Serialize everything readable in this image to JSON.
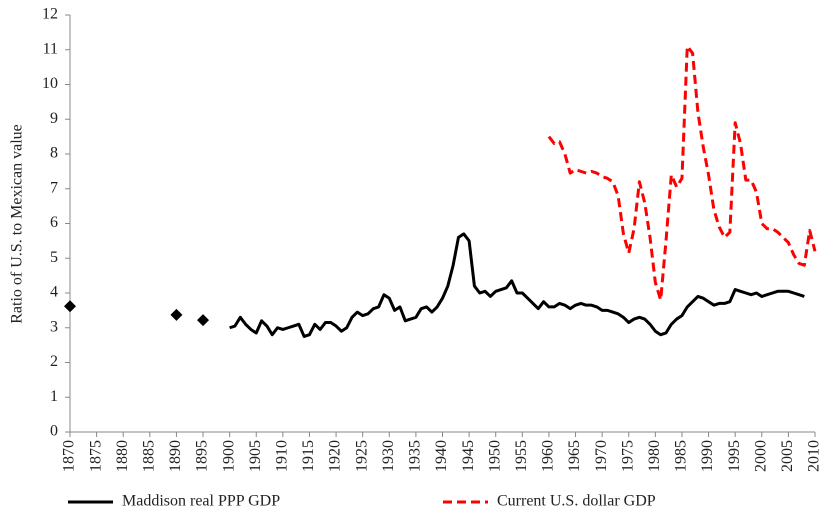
{
  "chart_data": {
    "type": "line",
    "y_label": "Ratio of U.S. to Mexican value",
    "xlim": [
      1870,
      2010
    ],
    "xticks": [
      1870,
      1875,
      1880,
      1885,
      1890,
      1895,
      1900,
      1905,
      1910,
      1915,
      1920,
      1925,
      1930,
      1935,
      1940,
      1945,
      1950,
      1955,
      1960,
      1965,
      1970,
      1975,
      1980,
      1985,
      1990,
      1995,
      2000,
      2005,
      2010
    ],
    "ylim": [
      0,
      12
    ],
    "yticks": [
      0,
      1,
      2,
      3,
      4,
      5,
      6,
      7,
      8,
      9,
      10,
      11,
      12
    ],
    "grid": false,
    "legend": "bottom",
    "series": [
      {
        "name": "Maddison real PPP GDP",
        "color": "#000000",
        "style": "solid",
        "x": [
          1900,
          1901,
          1902,
          1903,
          1904,
          1905,
          1906,
          1907,
          1908,
          1909,
          1910,
          1911,
          1912,
          1913,
          1914,
          1915,
          1916,
          1917,
          1918,
          1919,
          1920,
          1921,
          1922,
          1923,
          1924,
          1925,
          1926,
          1927,
          1928,
          1929,
          1930,
          1931,
          1932,
          1933,
          1934,
          1935,
          1936,
          1937,
          1938,
          1939,
          1940,
          1941,
          1942,
          1943,
          1944,
          1945,
          1946,
          1947,
          1948,
          1949,
          1950,
          1951,
          1952,
          1953,
          1954,
          1955,
          1956,
          1957,
          1958,
          1959,
          1960,
          1961,
          1962,
          1963,
          1964,
          1965,
          1966,
          1967,
          1968,
          1969,
          1970,
          1971,
          1972,
          1973,
          1974,
          1975,
          1976,
          1977,
          1978,
          1979,
          1980,
          1981,
          1982,
          1983,
          1984,
          1985,
          1986,
          1987,
          1988,
          1989,
          1990,
          1991,
          1992,
          1993,
          1994,
          1995,
          1996,
          1997,
          1998,
          1999,
          2000,
          2001,
          2002,
          2003,
          2004,
          2005,
          2006,
          2007,
          2008
        ],
        "values": [
          3.0,
          3.05,
          3.3,
          3.1,
          2.95,
          2.85,
          3.2,
          3.05,
          2.8,
          3.0,
          2.95,
          3.0,
          3.05,
          3.1,
          2.75,
          2.8,
          3.1,
          2.95,
          3.15,
          3.15,
          3.05,
          2.9,
          3.0,
          3.3,
          3.45,
          3.35,
          3.4,
          3.55,
          3.6,
          3.95,
          3.85,
          3.5,
          3.6,
          3.2,
          3.25,
          3.3,
          3.55,
          3.6,
          3.45,
          3.6,
          3.85,
          4.2,
          4.8,
          5.6,
          5.7,
          5.5,
          4.2,
          4.0,
          4.05,
          3.9,
          4.05,
          4.1,
          4.15,
          4.35,
          4.0,
          4.0,
          3.85,
          3.7,
          3.55,
          3.75,
          3.6,
          3.6,
          3.7,
          3.65,
          3.55,
          3.65,
          3.7,
          3.65,
          3.65,
          3.6,
          3.5,
          3.5,
          3.45,
          3.4,
          3.3,
          3.15,
          3.25,
          3.3,
          3.25,
          3.1,
          2.9,
          2.8,
          2.85,
          3.1,
          3.25,
          3.35,
          3.6,
          3.75,
          3.9,
          3.85,
          3.75,
          3.65,
          3.7,
          3.7,
          3.75,
          4.1,
          4.05,
          4.0,
          3.95,
          4.0,
          3.9,
          3.95,
          4.0,
          4.05,
          4.05,
          4.05,
          4.0,
          3.95,
          3.9
        ]
      },
      {
        "color": "#000000",
        "style": "markers",
        "x": [
          1870,
          1890,
          1895
        ],
        "values": [
          3.62,
          3.37,
          3.22
        ]
      },
      {
        "name": "Current U.S. dollar GDP",
        "color": "#ff0000",
        "style": "dashed",
        "x": [
          1960,
          1961,
          1962,
          1963,
          1964,
          1965,
          1966,
          1967,
          1968,
          1969,
          1970,
          1971,
          1972,
          1973,
          1974,
          1975,
          1976,
          1977,
          1978,
          1979,
          1980,
          1981,
          1982,
          1983,
          1984,
          1985,
          1986,
          1987,
          1988,
          1989,
          1990,
          1991,
          1992,
          1993,
          1994,
          1995,
          1996,
          1997,
          1998,
          1999,
          2000,
          2001,
          2002,
          2003,
          2004,
          2005,
          2006,
          2007,
          2008,
          2009,
          2010
        ],
        "values": [
          8.5,
          8.3,
          8.35,
          8.0,
          7.45,
          7.55,
          7.5,
          7.45,
          7.5,
          7.45,
          7.35,
          7.3,
          7.2,
          6.8,
          5.7,
          5.15,
          5.85,
          7.2,
          6.6,
          5.6,
          4.3,
          3.8,
          5.5,
          7.4,
          7.05,
          7.3,
          11.1,
          10.9,
          9.2,
          8.2,
          7.4,
          6.4,
          5.9,
          5.6,
          5.75,
          8.9,
          8.3,
          7.25,
          7.25,
          6.9,
          6.0,
          5.85,
          5.85,
          5.75,
          5.6,
          5.45,
          5.1,
          4.85,
          4.8,
          5.8,
          5.2
        ]
      }
    ]
  }
}
